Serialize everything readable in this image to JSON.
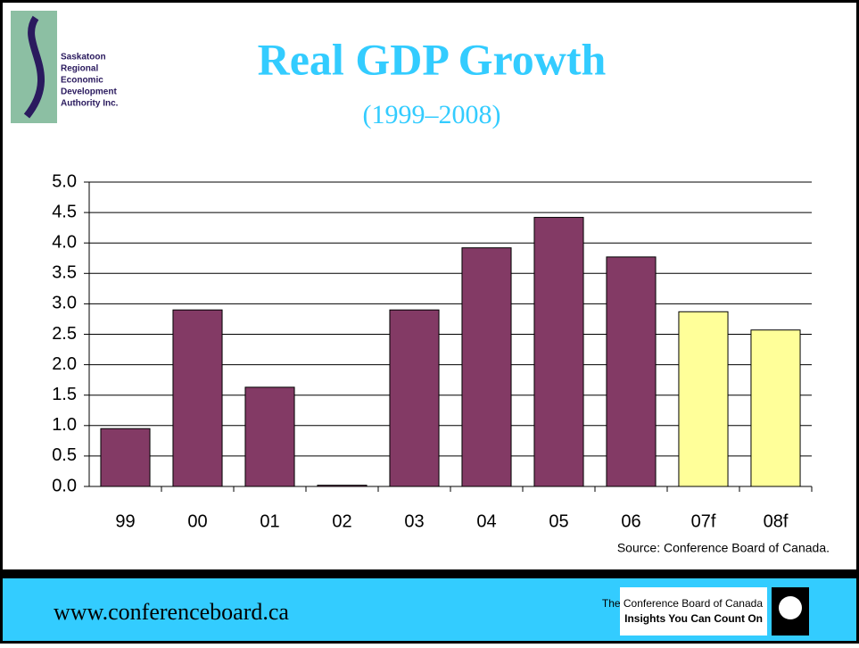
{
  "header": {
    "logo_lines": [
      "Saskatoon",
      "Regional",
      "Economic",
      "Development",
      "Authority Inc."
    ]
  },
  "chart_data": {
    "type": "bar",
    "title": "Real GDP Growth",
    "subtitle": "(1999–2008)",
    "categories": [
      "99",
      "00",
      "01",
      "02",
      "03",
      "04",
      "05",
      "06",
      "07f",
      "08f"
    ],
    "values": [
      0.95,
      2.9,
      1.63,
      0.02,
      2.9,
      3.92,
      4.42,
      3.77,
      2.87,
      2.57
    ],
    "colors": [
      "#833a65",
      "#833a65",
      "#833a65",
      "#833a65",
      "#833a65",
      "#833a65",
      "#833a65",
      "#833a65",
      "#ffff99",
      "#ffff99"
    ],
    "ylim": [
      0,
      5
    ],
    "yticks": [
      {
        "value": 0,
        "label": "0.0"
      },
      0.5,
      {
        "value": 1,
        "label": "1.0"
      },
      1.5,
      {
        "value": 2,
        "label": "2.0"
      },
      2.5,
      {
        "value": 3,
        "label": "3.0"
      },
      3.5,
      {
        "value": 4,
        "label": "4.0"
      },
      4.5,
      {
        "value": 5,
        "label": "5.0"
      }
    ],
    "grid": true,
    "annotation": "Source: Conference Board of Canada."
  },
  "footer": {
    "url": "www.conferenceboard.ca",
    "org": "The Conference Board of Canada",
    "tagline": "Insights You Can Count On"
  }
}
